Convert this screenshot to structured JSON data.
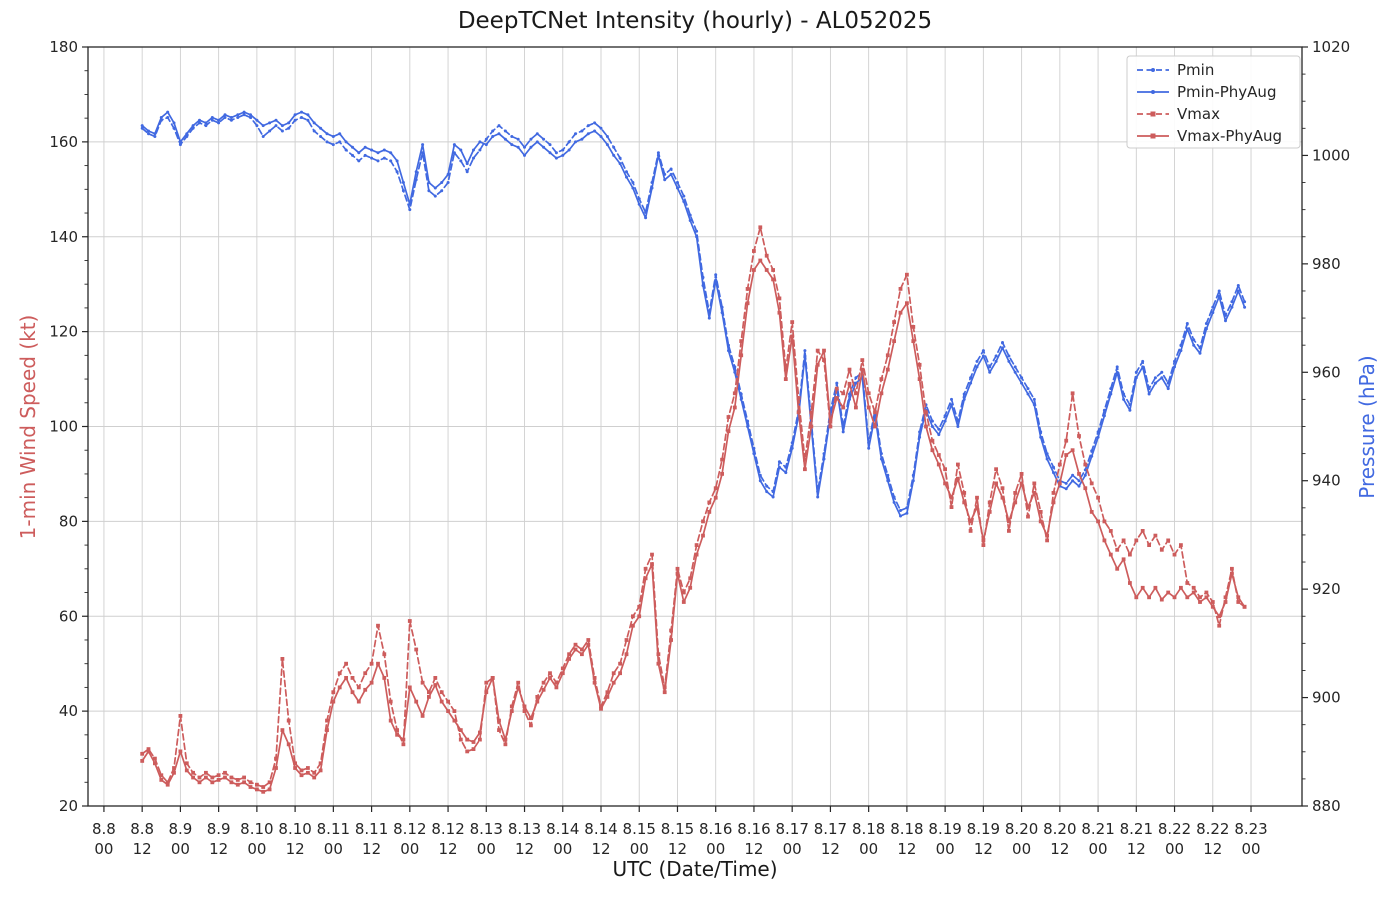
{
  "chart_data": {
    "type": "line",
    "title": "DeepTCNet Intensity (hourly) - AL052025",
    "xlabel": "UTC (Date/Time)",
    "ylabel_left": "1-min Wind Speed (kt)",
    "ylabel_right": "Pressure (hPa)",
    "grid": true,
    "legend_position": "upper right",
    "x_unit": "hours since 8.8 00 UTC",
    "xlim_hours": [
      -5,
      376
    ],
    "x_tick_step_hours": 12,
    "x_tick_dates": [
      "8.8",
      "8.8",
      "8.9",
      "8.9",
      "8.10",
      "8.10",
      "8.11",
      "8.11",
      "8.12",
      "8.12",
      "8.13",
      "8.13",
      "8.14",
      "8.14",
      "8.15",
      "8.15",
      "8.16",
      "8.16",
      "8.17",
      "8.17",
      "8.18",
      "8.18",
      "8.19",
      "8.19",
      "8.20",
      "8.20",
      "8.21",
      "8.21",
      "8.22",
      "8.22",
      "8.23"
    ],
    "x_tick_times": [
      "00",
      "12",
      "00",
      "12",
      "00",
      "12",
      "00",
      "12",
      "00",
      "12",
      "00",
      "12",
      "00",
      "12",
      "00",
      "12",
      "00",
      "12",
      "00",
      "12",
      "00",
      "12",
      "00",
      "12",
      "00",
      "12",
      "00",
      "12",
      "00",
      "12",
      "00"
    ],
    "y_left": {
      "min": 20,
      "max": 180,
      "ticks": [
        20,
        40,
        60,
        80,
        100,
        120,
        140,
        160,
        180
      ],
      "minor_step": 5,
      "label_color": "#cd5c5c"
    },
    "y_right": {
      "min": 880,
      "max": 1020,
      "ticks": [
        880,
        900,
        920,
        940,
        960,
        980,
        1000,
        1020
      ],
      "minor_step": 5,
      "label_color": "#4169e1"
    },
    "series": [
      {
        "name": "Pmin",
        "axis": "right",
        "color": "#4169e1",
        "dashed": true,
        "marker": "circle",
        "start_hour": 12,
        "step_hours": 2,
        "values": [
          1005,
          1004,
          1003.5,
          1006.5,
          1007,
          1005,
          1002,
          1003.5,
          1005,
          1006,
          1005.5,
          1006.5,
          1006,
          1007,
          1006.5,
          1007,
          1007.5,
          1007,
          1005.5,
          1003.5,
          1004.5,
          1005.5,
          1004.5,
          1005,
          1006.5,
          1007,
          1006.5,
          1004.5,
          1003.5,
          1002.5,
          1002,
          1002.5,
          1001,
          1000,
          999,
          1000,
          999.5,
          999,
          999.5,
          999,
          997,
          993.5,
          990,
          995.5,
          1000.5,
          993.5,
          992.5,
          993.5,
          995,
          1000.5,
          999,
          997,
          999.5,
          1001,
          1003,
          1004.5,
          1005.5,
          1004.5,
          1003.5,
          1003,
          1001.5,
          1003,
          1004,
          1003,
          1002,
          1000.5,
          1001,
          1002.5,
          1004,
          1004.5,
          1005.5,
          1006,
          1005,
          1003.5,
          1001.5,
          999.5,
          997,
          995,
          992,
          989.5,
          995,
          1000.5,
          996.5,
          997.5,
          995,
          992.5,
          989,
          986,
          977.5,
          971,
          978,
          972,
          965,
          961,
          956,
          951,
          946,
          941,
          939,
          938,
          943.5,
          942.5,
          947,
          953,
          964,
          951,
          938,
          945,
          953,
          958,
          950,
          956,
          959,
          960,
          947,
          953,
          945,
          941,
          937,
          934.5,
          935,
          941,
          949,
          954,
          951,
          949.5,
          952,
          955,
          951,
          956,
          959,
          962,
          964,
          961,
          963,
          965.5,
          963,
          961,
          959,
          957,
          955,
          949,
          945,
          942.5,
          940,
          939.5,
          941,
          940,
          942,
          945.5,
          949,
          953,
          957,
          961,
          956,
          954,
          960,
          962,
          957,
          959,
          960,
          958,
          962,
          965,
          969,
          966,
          964.5,
          969,
          972,
          975,
          970.5,
          973,
          976,
          973
        ]
      },
      {
        "name": "Pmin-PhyAug",
        "axis": "right",
        "color": "#4169e1",
        "dashed": false,
        "marker": "circle",
        "start_hour": 12,
        "step_hours": 2,
        "values": [
          1005.5,
          1004.5,
          1004,
          1007,
          1008,
          1006,
          1002.5,
          1004,
          1005.5,
          1006.5,
          1006,
          1007,
          1006.5,
          1007.5,
          1007,
          1007.5,
          1008,
          1007.5,
          1006.5,
          1005.5,
          1006,
          1006.5,
          1005.5,
          1006,
          1007.5,
          1008,
          1007.5,
          1006,
          1005,
          1004,
          1003.5,
          1004,
          1002.5,
          1001.5,
          1000.5,
          1001.5,
          1001,
          1000.5,
          1001,
          1000.5,
          999,
          995,
          991,
          997,
          1002,
          995,
          994,
          995,
          996.5,
          1002,
          1001,
          998.5,
          1001,
          1002.5,
          1002,
          1003.5,
          1004,
          1003,
          1002,
          1001.5,
          1000,
          1001.5,
          1002.5,
          1001.5,
          1000.5,
          999.5,
          1000,
          1001,
          1002.5,
          1003,
          1004,
          1004.5,
          1003.5,
          1002,
          1000,
          998.5,
          996,
          994,
          991,
          988.5,
          994,
          1000,
          995.5,
          996.5,
          994,
          991.5,
          988,
          985,
          976,
          970,
          977,
          971,
          964,
          960,
          955,
          950,
          945,
          940,
          938,
          937,
          942.5,
          941.5,
          946,
          952,
          963,
          950,
          937,
          944,
          952,
          957,
          949,
          955,
          958,
          959,
          946,
          952,
          944,
          940,
          936,
          933.5,
          934,
          940,
          948,
          953,
          950,
          948.5,
          951,
          954,
          950,
          955,
          958,
          961,
          963,
          960,
          962,
          964.5,
          962,
          960,
          958,
          956,
          954,
          948,
          944,
          941.5,
          939,
          938.5,
          940,
          939,
          941,
          944.5,
          948,
          952,
          956,
          960,
          955,
          953,
          959,
          961,
          956,
          958,
          959,
          957,
          961,
          964,
          968,
          965,
          963.5,
          968,
          971,
          974,
          969.5,
          972,
          975,
          972
        ]
      },
      {
        "name": "Vmax",
        "axis": "left",
        "color": "#cd5c5c",
        "dashed": true,
        "marker": "square",
        "start_hour": 12,
        "step_hours": 2,
        "values": [
          31,
          32,
          30,
          26.5,
          25,
          28,
          39,
          29,
          27,
          26,
          27,
          26,
          26.5,
          27,
          26,
          25.5,
          26,
          25,
          24.5,
          24,
          25,
          30,
          51,
          38,
          29,
          27.5,
          28,
          27,
          29,
          38,
          44,
          48,
          50,
          47,
          45,
          48,
          50,
          58,
          52,
          42,
          36,
          33,
          59,
          53,
          46,
          44,
          47,
          44,
          42,
          40,
          34,
          31.5,
          32,
          34,
          46,
          47,
          36,
          33,
          41,
          46,
          40,
          37,
          43,
          46,
          48,
          46,
          49,
          52,
          54,
          53,
          55,
          47,
          41,
          44,
          48,
          50,
          55,
          60,
          62,
          70,
          73,
          52,
          45,
          57,
          70,
          65,
          68,
          75,
          80,
          84,
          87,
          93,
          102,
          107,
          118,
          129,
          137,
          142,
          136,
          133,
          127,
          112,
          122,
          106,
          93,
          103,
          116,
          114,
          100,
          108,
          107,
          112,
          107,
          114,
          107,
          103,
          110,
          115,
          122,
          129,
          132,
          121,
          113,
          103,
          97,
          94,
          91,
          83,
          92,
          86,
          78,
          85,
          75,
          84,
          91,
          87,
          78,
          86,
          90,
          81,
          88,
          82,
          76,
          86,
          92,
          97,
          107,
          98,
          92,
          88,
          85,
          80,
          78,
          74,
          76,
          73,
          76,
          78,
          75,
          77,
          74,
          76,
          73,
          75,
          67,
          66,
          64,
          65,
          63,
          58,
          64,
          70,
          63,
          62
        ]
      },
      {
        "name": "Vmax-PhyAug",
        "axis": "left",
        "color": "#cd5c5c",
        "dashed": false,
        "marker": "square",
        "start_hour": 12,
        "step_hours": 2,
        "values": [
          29.5,
          31.5,
          29,
          25.5,
          24.5,
          27,
          31.5,
          27.5,
          26,
          25,
          26,
          25,
          25.5,
          26,
          25,
          24.5,
          25,
          24,
          23.5,
          23,
          23.5,
          28,
          36,
          33,
          28,
          26.5,
          27,
          26,
          27.5,
          36,
          42,
          45,
          47,
          44,
          42,
          44.5,
          46,
          50,
          47,
          38,
          35,
          34,
          45,
          42,
          39,
          43,
          45.5,
          42,
          40,
          38,
          36,
          34,
          33.5,
          35.5,
          44,
          47,
          38,
          34,
          40,
          45,
          41,
          38.5,
          42,
          44.5,
          47,
          45,
          48,
          51,
          53,
          52,
          54,
          46,
          40.5,
          43,
          46,
          48,
          52,
          58,
          60,
          68,
          71,
          50,
          44,
          55,
          69,
          63,
          66,
          73,
          77,
          82,
          85,
          90,
          99,
          104,
          115,
          126,
          133,
          135,
          133,
          131,
          124,
          110,
          119,
          103,
          91,
          100,
          113,
          116,
          101,
          106,
          104,
          109,
          104,
          112,
          104,
          100,
          107,
          112,
          118,
          124,
          126,
          118,
          110,
          100,
          95,
          92,
          88,
          85,
          89,
          84,
          80,
          83,
          76,
          82,
          88,
          85,
          80,
          84,
          88,
          83,
          86,
          80,
          77,
          84,
          88,
          94,
          95,
          90,
          87,
          82,
          80,
          76,
          73,
          70,
          72,
          67,
          64,
          66,
          64,
          66,
          63.5,
          65,
          64,
          66,
          64,
          65,
          63,
          64,
          62,
          60,
          63,
          69,
          64,
          62
        ]
      }
    ]
  }
}
